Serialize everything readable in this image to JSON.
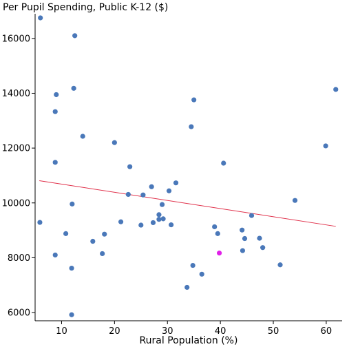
{
  "chart_data": {
    "type": "scatter",
    "title": "Per Pupil Spending, Public K-12 ($)",
    "xlabel": "Rural Population (%)",
    "ylabel": "",
    "xlim": [
      5,
      63
    ],
    "ylim": [
      5700,
      16900
    ],
    "xticks": [
      10,
      20,
      30,
      40,
      50,
      60
    ],
    "yticks": [
      6000,
      8000,
      10000,
      12000,
      14000,
      16000
    ],
    "grid": false,
    "legend": "none",
    "colors": {
      "point": "#4a78b9",
      "highlight": "#e020e8",
      "trend": "#e0304a"
    },
    "trendline": {
      "x": [
        5.8,
        61.8
      ],
      "y": [
        10810,
        9145
      ]
    },
    "highlight": {
      "x": 39.8,
      "y": 8170
    },
    "points": [
      {
        "x": 6.0,
        "y": 16750
      },
      {
        "x": 12.5,
        "y": 16100
      },
      {
        "x": 12.3,
        "y": 14180
      },
      {
        "x": 9.0,
        "y": 13950
      },
      {
        "x": 8.8,
        "y": 13330
      },
      {
        "x": 14.0,
        "y": 12430
      },
      {
        "x": 20.0,
        "y": 12200
      },
      {
        "x": 8.8,
        "y": 11480
      },
      {
        "x": 22.9,
        "y": 11320
      },
      {
        "x": 5.9,
        "y": 9290
      },
      {
        "x": 12.0,
        "y": 9960
      },
      {
        "x": 10.8,
        "y": 8880
      },
      {
        "x": 8.8,
        "y": 8100
      },
      {
        "x": 11.9,
        "y": 7620
      },
      {
        "x": 11.9,
        "y": 5920
      },
      {
        "x": 15.9,
        "y": 8600
      },
      {
        "x": 18.1,
        "y": 8860
      },
      {
        "x": 17.7,
        "y": 8150
      },
      {
        "x": 21.2,
        "y": 9310
      },
      {
        "x": 22.6,
        "y": 10310
      },
      {
        "x": 25.0,
        "y": 9190
      },
      {
        "x": 25.4,
        "y": 10290
      },
      {
        "x": 27.0,
        "y": 10590
      },
      {
        "x": 27.3,
        "y": 9280
      },
      {
        "x": 28.4,
        "y": 9570
      },
      {
        "x": 28.4,
        "y": 9400
      },
      {
        "x": 29.0,
        "y": 9940
      },
      {
        "x": 29.2,
        "y": 9420
      },
      {
        "x": 30.3,
        "y": 10440
      },
      {
        "x": 30.7,
        "y": 9200
      },
      {
        "x": 31.6,
        "y": 10730
      },
      {
        "x": 34.5,
        "y": 12780
      },
      {
        "x": 35.0,
        "y": 13760
      },
      {
        "x": 33.7,
        "y": 6920
      },
      {
        "x": 34.8,
        "y": 7720
      },
      {
        "x": 36.5,
        "y": 7400
      },
      {
        "x": 38.9,
        "y": 9130
      },
      {
        "x": 39.5,
        "y": 8880
      },
      {
        "x": 40.6,
        "y": 11450
      },
      {
        "x": 44.1,
        "y": 9010
      },
      {
        "x": 44.6,
        "y": 8700
      },
      {
        "x": 44.2,
        "y": 8260
      },
      {
        "x": 45.9,
        "y": 9540
      },
      {
        "x": 47.4,
        "y": 8710
      },
      {
        "x": 48.0,
        "y": 8370
      },
      {
        "x": 51.3,
        "y": 7740
      },
      {
        "x": 54.1,
        "y": 10090
      },
      {
        "x": 59.9,
        "y": 12080
      },
      {
        "x": 61.8,
        "y": 14140
      }
    ]
  }
}
